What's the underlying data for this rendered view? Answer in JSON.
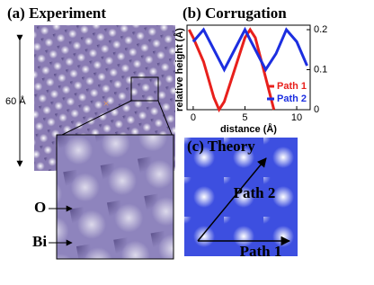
{
  "chart_data": {
    "type": "line",
    "title": "(b)  Corrugation",
    "xlabel": "distance (Å)",
    "ylabel": "relative height (Å)",
    "xlim": [
      -0.6,
      11.3
    ],
    "xticks": [
      0,
      5,
      10
    ],
    "ylim": [
      0,
      0.2
    ],
    "yticks": [
      0,
      0.1,
      0.2
    ],
    "legend": "lower right",
    "series": [
      {
        "name": "Path 1",
        "color": "#e8201c",
        "x": [
          -0.4,
          0,
          1,
          2,
          2.5,
          3,
          4,
          5,
          5.5,
          6,
          7,
          7.8
        ],
        "values": [
          0.2,
          0.18,
          0.12,
          0.03,
          0,
          0.02,
          0.1,
          0.18,
          0.2,
          0.18,
          0.08,
          0
        ]
      },
      {
        "name": "Path 2",
        "color": "#1c2ee0",
        "x": [
          0,
          1,
          2,
          3,
          4,
          5,
          6,
          7,
          8,
          9,
          10,
          11
        ],
        "values": [
          0.17,
          0.2,
          0.15,
          0.1,
          0.15,
          0.2,
          0.15,
          0.1,
          0.14,
          0.2,
          0.17,
          0.11
        ]
      }
    ]
  },
  "panels": {
    "a": {
      "title": "(a) Experiment",
      "scale": "60 Å",
      "labels": [
        "O",
        "Bi"
      ]
    },
    "c": {
      "title": "(c)  Theory",
      "paths": [
        "Path 2",
        "Path 1"
      ]
    }
  }
}
